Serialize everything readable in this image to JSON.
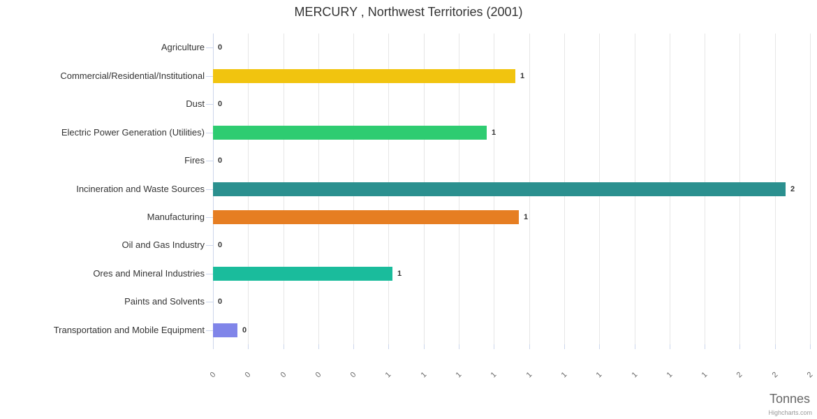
{
  "chart_data": {
    "type": "bar",
    "orientation": "horizontal",
    "title": "MERCURY , Northwest Territories (2001)",
    "xlabel": "Tonnes",
    "ylabel": "",
    "credits": "Highcharts.com",
    "legend": false,
    "grid": true,
    "xlim": [
      0,
      1.7
    ],
    "tick_interval": 0.1,
    "xtick_display_labels": [
      "0",
      "0",
      "0",
      "0",
      "0",
      "1",
      "1",
      "1",
      "1",
      "1",
      "1",
      "1",
      "1",
      "1",
      "1",
      "2",
      "2",
      "2"
    ],
    "categories": [
      "Agriculture",
      "Commercial/Residential/Institutional",
      "Dust",
      "Electric Power Generation (Utilities)",
      "Fires",
      "Incineration and Waste Sources",
      "Manufacturing",
      "Oil and Gas Industry",
      "Ores and Mineral Industries",
      "Paints and Solvents",
      "Transportation and Mobile Equipment"
    ],
    "values": [
      0,
      0.86,
      0,
      0.78,
      0,
      1.63,
      0.87,
      0,
      0.51,
      0,
      0.07
    ],
    "value_display_labels": [
      "0",
      "1",
      "0",
      "1",
      "0",
      "2",
      "1",
      "0",
      "1",
      "0",
      "0"
    ],
    "bar_colors": [
      null,
      "#f1c40f",
      null,
      "#2ecc71",
      null,
      "#2b908f",
      "#e67e22",
      null,
      "#1abc9c",
      null,
      "#8085e9"
    ],
    "theme": {
      "title_color": "#333333",
      "category_label_color": "#333333",
      "value_label_color": "#333333",
      "xtick_label_color": "#666666",
      "axis_line_color": "#ccd6eb",
      "gridline_color": "#e6e6e6",
      "xaxis_title_color": "#666666",
      "credits_color": "#999999",
      "background_color": "#ffffff"
    }
  }
}
